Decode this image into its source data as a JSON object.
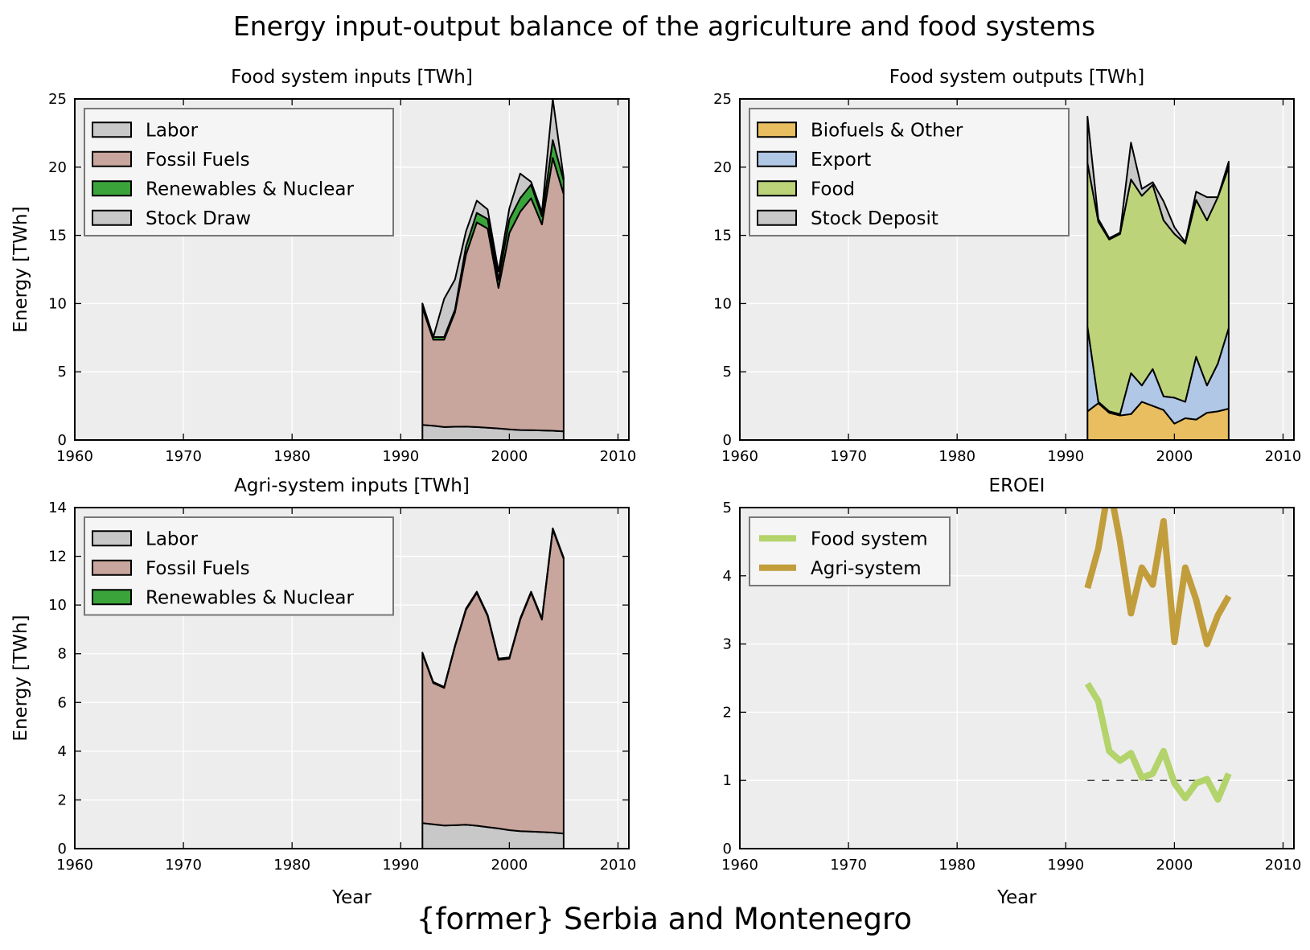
{
  "figure": {
    "title": "Energy input-output balance of the agriculture and food systems",
    "subtitle": "{former} Serbia and Montenegro"
  },
  "chart_data": [
    {
      "id": "food-inputs",
      "type": "area",
      "title": "Food system inputs [TWh]",
      "xlabel": "",
      "ylabel": "Energy [TWh]",
      "xlim": [
        1960,
        2011
      ],
      "ylim": [
        0,
        25
      ],
      "xticks": [
        1960,
        1970,
        1980,
        1990,
        2000,
        2010
      ],
      "yticks": [
        0,
        5,
        10,
        15,
        20,
        25
      ],
      "grid": true,
      "legend": "top-left",
      "legend_order": [
        "Labor",
        "Fossil Fuels",
        "Renewables & Nuclear",
        "Stock Draw"
      ],
      "x": [
        1992,
        1993,
        1994,
        1995,
        1996,
        1997,
        1998,
        1999,
        2000,
        2001,
        2002,
        2003,
        2004,
        2005
      ],
      "series": [
        {
          "name": "Labor",
          "color": "#c8c8c8",
          "values": [
            1.1,
            1.05,
            0.95,
            0.97,
            0.98,
            0.95,
            0.9,
            0.85,
            0.78,
            0.73,
            0.72,
            0.7,
            0.68,
            0.63
          ]
        },
        {
          "name": "Fossil Fuels",
          "color": "#c8a59d",
          "values": [
            8.6,
            6.3,
            6.4,
            8.4,
            12.6,
            15.0,
            14.6,
            10.3,
            14.4,
            16.0,
            17.0,
            15.1,
            20.0,
            17.4
          ]
        },
        {
          "name": "Renewables & Nuclear",
          "color": "#3aa43a",
          "values": [
            0.3,
            0.2,
            0.2,
            0.2,
            0.6,
            0.7,
            0.7,
            0.6,
            1.0,
            1.0,
            1.0,
            0.6,
            1.3,
            1.0
          ]
        },
        {
          "name": "Stock Draw",
          "color": "#c8c8c8",
          "values": [
            0,
            0,
            2.8,
            2.2,
            1.1,
            0.9,
            0.7,
            0.6,
            0.8,
            1.8,
            0.2,
            0.3,
            3.0,
            0.2
          ]
        }
      ]
    },
    {
      "id": "food-outputs",
      "type": "area",
      "title": "Food system outputs [TWh]",
      "xlabel": "",
      "ylabel": "",
      "xlim": [
        1960,
        2011
      ],
      "ylim": [
        0,
        25
      ],
      "xticks": [
        1960,
        1970,
        1980,
        1990,
        2000,
        2010
      ],
      "yticks": [
        0,
        5,
        10,
        15,
        20,
        25
      ],
      "grid": true,
      "legend": "top-left",
      "legend_order": [
        "Biofuels & Other",
        "Export",
        "Food",
        "Stock Deposit"
      ],
      "x": [
        1992,
        1993,
        1994,
        1995,
        1996,
        1997,
        1998,
        1999,
        2000,
        2001,
        2002,
        2003,
        2004,
        2005
      ],
      "series": [
        {
          "name": "Biofuels & Other",
          "color": "#e8be60",
          "values": [
            2.1,
            2.7,
            2.0,
            1.8,
            1.9,
            2.8,
            2.5,
            2.2,
            1.2,
            1.6,
            1.5,
            2.0,
            2.1,
            2.3
          ]
        },
        {
          "name": "Export",
          "color": "#b0c8e6",
          "values": [
            6.2,
            0.1,
            0.1,
            0.1,
            3.0,
            1.2,
            2.7,
            1.0,
            1.9,
            1.2,
            4.6,
            2.0,
            3.5,
            5.9
          ]
        },
        {
          "name": "Food",
          "color": "#bcd37a",
          "values": [
            12.0,
            13.2,
            12.6,
            13.2,
            14.2,
            13.9,
            13.5,
            12.9,
            12.0,
            11.6,
            11.5,
            12.1,
            12.2,
            11.8
          ]
        },
        {
          "name": "Stock Deposit",
          "color": "#c8c8c8",
          "values": [
            3.4,
            0.2,
            0.1,
            0.1,
            2.7,
            0.5,
            0.2,
            1.4,
            0.5,
            0.1,
            0.6,
            1.7,
            0,
            0.4
          ]
        }
      ]
    },
    {
      "id": "agri-inputs",
      "type": "area",
      "title": "Agri-system inputs [TWh]",
      "xlabel": "Year",
      "ylabel": "Energy [TWh]",
      "xlim": [
        1960,
        2011
      ],
      "ylim": [
        0,
        14
      ],
      "xticks": [
        1960,
        1970,
        1980,
        1990,
        2000,
        2010
      ],
      "yticks": [
        0,
        2,
        4,
        6,
        8,
        10,
        12,
        14
      ],
      "grid": true,
      "legend": "top-left",
      "legend_order": [
        "Labor",
        "Fossil Fuels",
        "Renewables & Nuclear"
      ],
      "x": [
        1992,
        1993,
        1994,
        1995,
        1996,
        1997,
        1998,
        1999,
        2000,
        2001,
        2002,
        2003,
        2004,
        2005
      ],
      "series": [
        {
          "name": "Labor",
          "color": "#c8c8c8",
          "values": [
            1.05,
            1.0,
            0.95,
            0.96,
            0.98,
            0.94,
            0.88,
            0.83,
            0.76,
            0.72,
            0.7,
            0.68,
            0.66,
            0.62
          ]
        },
        {
          "name": "Fossil Fuels",
          "color": "#c8a59d",
          "values": [
            6.95,
            5.8,
            5.65,
            7.34,
            8.82,
            9.56,
            8.67,
            6.92,
            7.04,
            8.68,
            9.8,
            8.72,
            12.44,
            11.28
          ]
        },
        {
          "name": "Renewables & Nuclear",
          "color": "#3aa43a",
          "values": [
            0.05,
            0.04,
            0.04,
            0.04,
            0.05,
            0.05,
            0.05,
            0.05,
            0.05,
            0.05,
            0.05,
            0.05,
            0.05,
            0.05
          ]
        }
      ]
    },
    {
      "id": "eroei",
      "type": "line",
      "title": "EROEI",
      "xlabel": "Year",
      "ylabel": "",
      "xlim": [
        1960,
        2011
      ],
      "ylim": [
        0,
        5
      ],
      "xticks": [
        1960,
        1970,
        1980,
        1990,
        2000,
        2010
      ],
      "yticks": [
        0,
        1,
        2,
        3,
        4,
        5
      ],
      "grid": true,
      "legend": "top-left",
      "reference_line": {
        "y": 1,
        "x": [
          1992,
          2005
        ],
        "style": "dashed"
      },
      "x": [
        1992,
        1993,
        1994,
        1995,
        1996,
        1997,
        1998,
        1999,
        2000,
        2001,
        2002,
        2003,
        2004,
        2005
      ],
      "series": [
        {
          "name": "Food system",
          "color": "#b3d36b",
          "values": [
            2.42,
            2.16,
            1.43,
            1.29,
            1.4,
            1.04,
            1.1,
            1.43,
            0.96,
            0.74,
            0.96,
            1.02,
            0.72,
            1.1
          ]
        },
        {
          "name": "Agri-system",
          "color": "#c29d3c",
          "values": [
            3.82,
            4.4,
            5.35,
            4.5,
            3.45,
            4.12,
            3.87,
            4.8,
            3.03,
            4.12,
            3.65,
            3.0,
            3.42,
            3.7
          ]
        }
      ]
    }
  ]
}
